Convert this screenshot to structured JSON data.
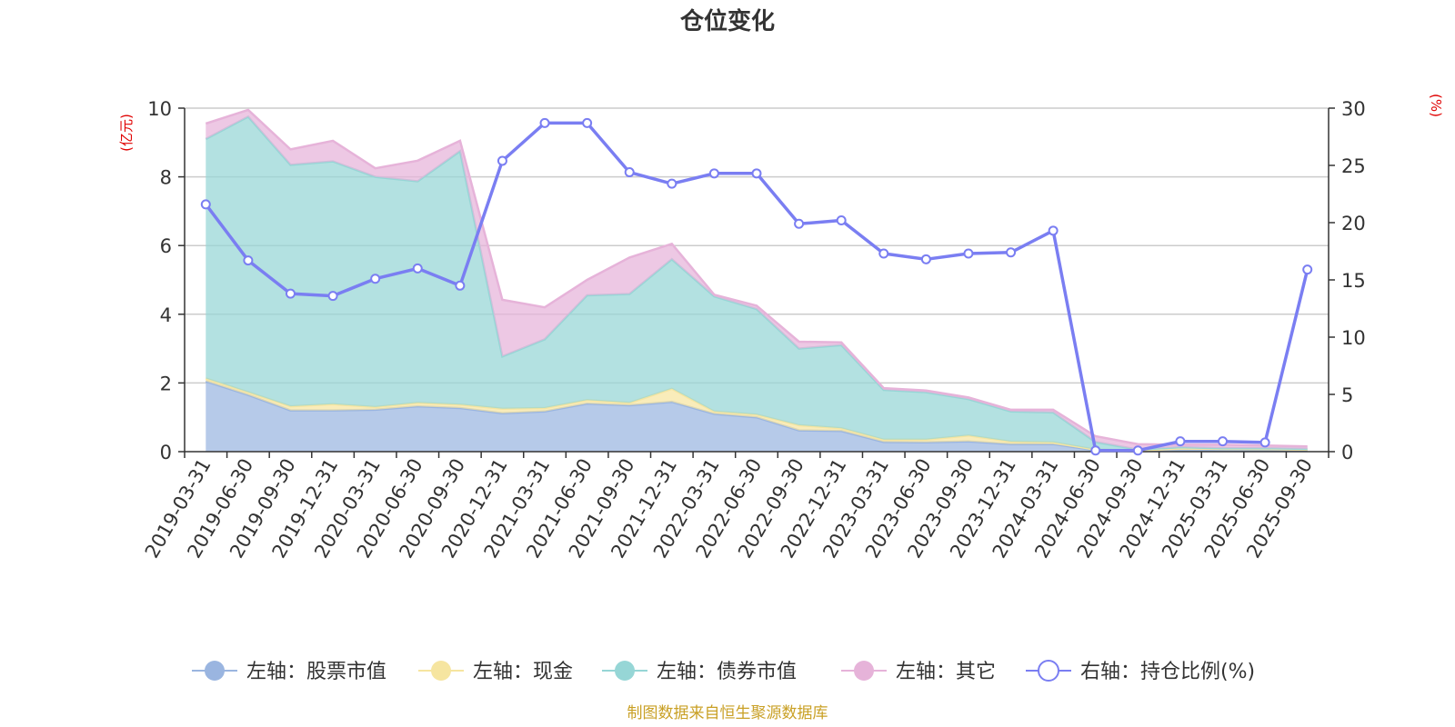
{
  "colors": {
    "stock": "#9ab5e0",
    "cash": "#f6e5a0",
    "bond": "#96d6d6",
    "other": "#e6b3d9",
    "ratio": "#7a7ef2",
    "unit": "#e00000",
    "source": "#c9a025",
    "grid": "#cccccc",
    "axis": "#333333"
  },
  "footer": {
    "source": "制图数据来自恒生聚源数据库"
  },
  "chart_data": {
    "type": "area",
    "title": "仓位变化",
    "left_axis": {
      "unit": "(亿元)",
      "range": [
        0,
        10
      ],
      "ticks": [
        0,
        2,
        4,
        6,
        8,
        10
      ]
    },
    "right_axis": {
      "unit": "(%)",
      "range": [
        0,
        30
      ],
      "ticks": [
        0,
        5,
        10,
        15,
        20,
        25,
        30
      ]
    },
    "categories": [
      "2019-03-31",
      "2019-06-30",
      "2019-09-30",
      "2019-12-31",
      "2020-03-31",
      "2020-06-30",
      "2020-09-30",
      "2020-12-31",
      "2021-03-31",
      "2021-06-30",
      "2021-09-30",
      "2021-12-31",
      "2022-03-31",
      "2022-06-30",
      "2022-09-30",
      "2022-12-31",
      "2023-03-31",
      "2023-06-30",
      "2023-09-30",
      "2023-12-31",
      "2024-03-31",
      "2024-06-30",
      "2024-09-30",
      "2024-12-31",
      "2025-03-31",
      "2025-06-30",
      "2025-09-30"
    ],
    "series": [
      {
        "name": "左轴：股票市值",
        "axis": "left",
        "stack": true,
        "color_key": "stock",
        "values": [
          2.05,
          1.65,
          1.2,
          1.2,
          1.22,
          1.32,
          1.27,
          1.12,
          1.17,
          1.4,
          1.35,
          1.45,
          1.1,
          1.0,
          0.62,
          0.6,
          0.28,
          0.27,
          0.3,
          0.22,
          0.22,
          0.04,
          0.01,
          0.05,
          0.05,
          0.04,
          0.03
        ]
      },
      {
        "name": "左轴：现金",
        "axis": "left",
        "stack": true,
        "color_key": "cash",
        "values": [
          0.08,
          0.08,
          0.12,
          0.18,
          0.08,
          0.1,
          0.1,
          0.13,
          0.1,
          0.1,
          0.07,
          0.38,
          0.07,
          0.08,
          0.15,
          0.08,
          0.07,
          0.08,
          0.17,
          0.07,
          0.05,
          0.02,
          0.02,
          0.05,
          0.03,
          0.04,
          0.03
        ]
      },
      {
        "name": "左轴：债券市值",
        "axis": "left",
        "stack": true,
        "color_key": "bond",
        "values": [
          6.97,
          8.02,
          7.03,
          7.07,
          6.7,
          6.45,
          7.38,
          1.52,
          2.0,
          3.05,
          3.17,
          3.77,
          3.35,
          3.07,
          2.23,
          2.42,
          1.45,
          1.38,
          1.06,
          0.88,
          0.87,
          0.22,
          0.03,
          0.03,
          0.02,
          0.02,
          0.02
        ]
      },
      {
        "name": "左轴：其它",
        "axis": "left",
        "stack": true,
        "color_key": "other",
        "values": [
          0.45,
          0.2,
          0.45,
          0.6,
          0.25,
          0.6,
          0.3,
          1.65,
          0.93,
          0.45,
          1.06,
          0.45,
          0.05,
          0.1,
          0.2,
          0.08,
          0.05,
          0.05,
          0.05,
          0.05,
          0.08,
          0.17,
          0.16,
          0.07,
          0.1,
          0.08,
          0.07
        ]
      },
      {
        "name": "右轴：持仓比例(%)",
        "axis": "right",
        "type": "line",
        "color_key": "ratio",
        "values": [
          21.6,
          16.7,
          13.8,
          13.6,
          15.1,
          16.0,
          14.5,
          25.4,
          28.7,
          28.7,
          24.4,
          23.4,
          24.3,
          24.3,
          19.9,
          20.2,
          17.3,
          16.8,
          17.3,
          17.4,
          19.3,
          0.1,
          0.1,
          0.9,
          0.9,
          0.8,
          15.9
        ]
      }
    ]
  }
}
